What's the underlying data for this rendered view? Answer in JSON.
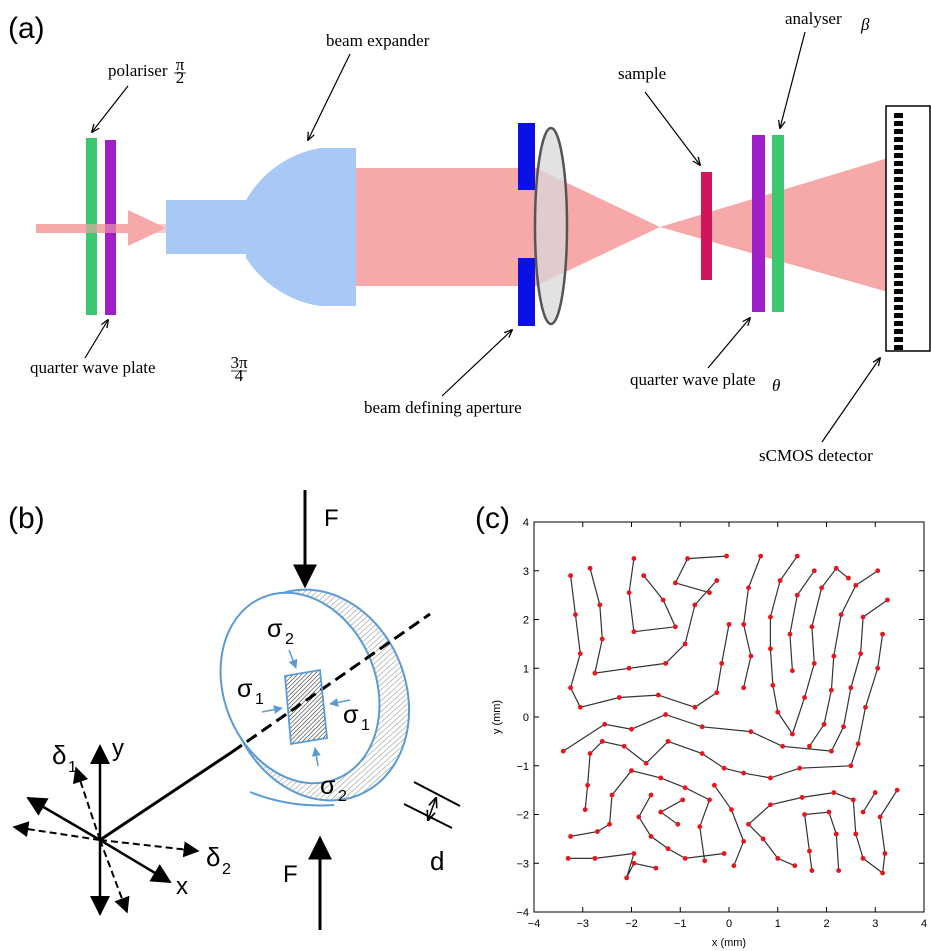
{
  "panels": {
    "a": "(a)",
    "b": "(b)",
    "c": "(c)"
  },
  "optics": {
    "polariser": {
      "text": "polariser",
      "sub_num": "π",
      "sub_den": "2"
    },
    "quarter_wave_left": {
      "text": "quarter wave plate",
      "sub_num": "3π",
      "sub_den": "4"
    },
    "beam_expander": "beam expander",
    "beam_defining_aperture": "beam defining aperture",
    "sample": "sample",
    "analyser": {
      "text": "analyser",
      "sub": "β"
    },
    "quarter_wave_right": {
      "text": "quarter wave plate",
      "sub": "θ"
    },
    "detector": "sCMOS detector",
    "colors": {
      "beam": "#f7a8a8",
      "polariser": "#3cc86e",
      "waveplate": "#a020c8",
      "expander": "#a8c8f5",
      "aperture": "#0a10e6",
      "sample": "#d4145a",
      "lens": "#d8d8d8"
    }
  },
  "stress": {
    "force_top": "F",
    "force_bottom": "F",
    "sigma": "σ",
    "sigma1_sub": "1",
    "sigma2_sub": "2",
    "delta": "δ",
    "delta1_sub": "1",
    "delta2_sub": "2",
    "axis_x": "x",
    "axis_y": "y",
    "thickness": "d",
    "ring_color": "#5b9bd5",
    "arrow_color": "#5b9bd5"
  },
  "chart_data": {
    "type": "line",
    "xlabel": "x (mm)",
    "ylabel": "y (mm)",
    "xlim": [
      -4,
      4
    ],
    "ylim": [
      -4,
      4
    ],
    "xticks": [
      -4,
      -3,
      -2,
      -1,
      0,
      1,
      2,
      3,
      4
    ],
    "yticks": [
      -4,
      -3,
      -2,
      -1,
      0,
      1,
      2,
      3,
      4
    ],
    "marker_color": "#e8161c",
    "line_color": "#333333",
    "paths": [
      [
        [
          -3.25,
          2.9
        ],
        [
          -3.15,
          2.1
        ],
        [
          -3.05,
          1.3
        ],
        [
          -3.25,
          0.6
        ],
        [
          -3.05,
          0.2
        ],
        [
          -2.25,
          0.4
        ],
        [
          -1.45,
          0.45
        ],
        [
          -0.7,
          0.2
        ],
        [
          -0.25,
          0.5
        ],
        [
          -0.15,
          1.1
        ],
        [
          0.0,
          1.9
        ]
      ],
      [
        [
          -2.85,
          3.05
        ],
        [
          -2.65,
          2.3
        ],
        [
          -2.6,
          1.6
        ],
        [
          -2.75,
          0.9
        ],
        [
          -2.05,
          1.0
        ],
        [
          -1.3,
          1.1
        ],
        [
          -0.9,
          1.5
        ],
        [
          -0.7,
          2.3
        ],
        [
          -0.25,
          2.8
        ]
      ],
      [
        [
          -1.95,
          3.25
        ],
        [
          -2.05,
          2.55
        ],
        [
          -1.95,
          1.75
        ],
        [
          -1.1,
          1.85
        ],
        [
          -1.35,
          2.4
        ],
        [
          -1.75,
          2.9
        ]
      ],
      [
        [
          -0.05,
          3.3
        ],
        [
          -0.85,
          3.25
        ],
        [
          -1.1,
          2.75
        ],
        [
          -0.4,
          2.55
        ]
      ],
      [
        [
          0.65,
          3.3
        ],
        [
          0.4,
          2.65
        ],
        [
          0.3,
          1.9
        ],
        [
          0.45,
          1.25
        ],
        [
          0.3,
          0.6
        ]
      ],
      [
        [
          1.4,
          3.3
        ],
        [
          1.05,
          2.8
        ],
        [
          0.85,
          2.05
        ],
        [
          0.85,
          1.4
        ],
        [
          0.9,
          0.65
        ],
        [
          1.0,
          0.1
        ],
        [
          1.3,
          -0.35
        ],
        [
          1.55,
          0.4
        ],
        [
          1.75,
          1.1
        ],
        [
          1.7,
          1.85
        ],
        [
          1.9,
          2.65
        ],
        [
          2.2,
          3.05
        ],
        [
          2.45,
          2.85
        ]
      ],
      [
        [
          1.75,
          3.0
        ],
        [
          1.4,
          2.5
        ],
        [
          1.25,
          1.7
        ],
        [
          1.3,
          0.95
        ]
      ],
      [
        [
          3.05,
          3.0
        ],
        [
          2.6,
          2.7
        ],
        [
          2.3,
          2.1
        ],
        [
          2.15,
          1.25
        ],
        [
          2.1,
          0.55
        ],
        [
          1.95,
          -0.15
        ],
        [
          1.65,
          -0.6
        ]
      ],
      [
        [
          3.25,
          2.4
        ],
        [
          2.75,
          2.05
        ],
        [
          2.7,
          1.3
        ],
        [
          2.5,
          0.6
        ],
        [
          2.35,
          -0.2
        ],
        [
          2.1,
          -0.7
        ],
        [
          1.1,
          -0.6
        ],
        [
          0.45,
          -0.3
        ],
        [
          -0.55,
          -0.2
        ],
        [
          -1.3,
          0.05
        ],
        [
          -2.0,
          -0.25
        ],
        [
          -2.55,
          -0.15
        ],
        [
          -3.4,
          -0.7
        ]
      ],
      [
        [
          3.15,
          1.7
        ],
        [
          3.05,
          1.0
        ],
        [
          2.8,
          0.2
        ],
        [
          2.65,
          -0.55
        ],
        [
          2.5,
          -1.0
        ],
        [
          1.45,
          -1.05
        ],
        [
          0.85,
          -1.25
        ],
        [
          0.3,
          -1.15
        ],
        [
          -0.1,
          -1.05
        ],
        [
          -0.55,
          -0.75
        ],
        [
          -1.25,
          -0.5
        ],
        [
          -1.7,
          -0.95
        ],
        [
          -2.15,
          -0.6
        ],
        [
          -2.6,
          -0.5
        ],
        [
          -2.85,
          -0.75
        ],
        [
          -2.9,
          -1.4
        ],
        [
          -2.95,
          -1.9
        ]
      ],
      [
        [
          3.45,
          -1.5
        ],
        [
          3.1,
          -2.05
        ],
        [
          3.2,
          -2.8
        ],
        [
          3.15,
          -3.2
        ],
        [
          2.75,
          -2.9
        ],
        [
          2.6,
          -2.4
        ],
        [
          2.55,
          -1.7
        ],
        [
          2.15,
          -1.55
        ],
        [
          1.5,
          -1.65
        ],
        [
          0.85,
          -1.8
        ],
        [
          0.4,
          -2.2
        ],
        [
          0.7,
          -2.5
        ],
        [
          1.0,
          -2.9
        ],
        [
          1.35,
          -3.05
        ]
      ],
      [
        [
          2.25,
          -3.15
        ],
        [
          2.2,
          -2.4
        ],
        [
          2.05,
          -1.95
        ],
        [
          1.55,
          -2.0
        ],
        [
          1.65,
          -2.75
        ],
        [
          1.7,
          -3.15
        ]
      ],
      [
        [
          3.0,
          -1.55
        ],
        [
          2.75,
          -1.95
        ]
      ],
      [
        [
          -0.5,
          -2.95
        ],
        [
          -0.6,
          -2.25
        ],
        [
          -0.4,
          -1.7
        ],
        [
          -0.9,
          -1.45
        ],
        [
          -1.4,
          -1.25
        ],
        [
          -2.0,
          -1.1
        ],
        [
          -2.4,
          -1.6
        ],
        [
          -2.45,
          -2.2
        ],
        [
          -2.7,
          -2.35
        ],
        [
          -3.25,
          -2.45
        ]
      ],
      [
        [
          -1.6,
          -1.6
        ],
        [
          -1.85,
          -2.05
        ],
        [
          -1.6,
          -2.45
        ],
        [
          -1.25,
          -2.7
        ],
        [
          -0.9,
          -2.9
        ],
        [
          -0.1,
          -2.8
        ]
      ],
      [
        [
          0.1,
          -3.05
        ],
        [
          0.3,
          -2.55
        ],
        [
          0.05,
          -1.9
        ],
        [
          -0.3,
          -1.4
        ]
      ],
      [
        [
          -1.5,
          -3.1
        ],
        [
          -1.95,
          -3.0
        ],
        [
          -2.1,
          -3.3
        ],
        [
          -1.95,
          -2.8
        ],
        [
          -2.75,
          -2.9
        ],
        [
          -3.3,
          -2.9
        ]
      ],
      [
        [
          -1.05,
          -2.2
        ],
        [
          -1.4,
          -1.95
        ],
        [
          -0.95,
          -1.7
        ]
      ]
    ]
  }
}
